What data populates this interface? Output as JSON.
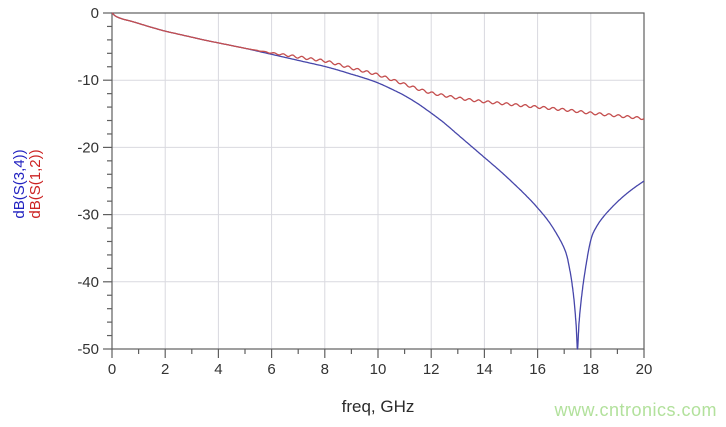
{
  "watermark": {
    "text": "www.cntronics.com",
    "color": "#b2e19c"
  },
  "chart_data": {
    "type": "line",
    "title": "",
    "xlabel": "freq, GHz",
    "ylabel_lines": [
      {
        "text": "dB(S(3,4))",
        "color": "#2323c0"
      },
      {
        "text": "dB(S(1,2))",
        "color": "#cc2222"
      }
    ],
    "xlim": [
      0,
      20
    ],
    "ylim": [
      -50,
      0
    ],
    "x_major_ticks": [
      0,
      2,
      4,
      6,
      8,
      10,
      12,
      14,
      16,
      18,
      20
    ],
    "x_tick_labels": [
      "0",
      "2",
      "4",
      "6",
      "8",
      "10",
      "12",
      "14",
      "16",
      "18",
      "20"
    ],
    "x_minor_step": 1,
    "y_major_ticks": [
      0,
      -10,
      -20,
      -30,
      -40,
      -50
    ],
    "y_tick_labels": [
      "0",
      "-10",
      "-20",
      "-30",
      "-40",
      "-50"
    ],
    "y_minor_step": 2,
    "grid": true,
    "grid_color": "#d9d9df",
    "axis_color": "#5f5f5f",
    "tick_label_color": "#333333",
    "legend_position": "rotated-left-axis",
    "series": [
      {
        "name": "dB(S(3,4))",
        "color": "#4646aa",
        "points": [
          [
            0,
            0
          ],
          [
            0.15,
            -0.5
          ],
          [
            0.4,
            -0.9
          ],
          [
            0.7,
            -1.2
          ],
          [
            1,
            -1.55
          ],
          [
            1.5,
            -2.15
          ],
          [
            2,
            -2.7
          ],
          [
            2.5,
            -3.15
          ],
          [
            3,
            -3.6
          ],
          [
            3.5,
            -4.05
          ],
          [
            4,
            -4.45
          ],
          [
            4.5,
            -4.85
          ],
          [
            5,
            -5.25
          ],
          [
            5.5,
            -5.7
          ],
          [
            6,
            -6.15
          ],
          [
            6.5,
            -6.6
          ],
          [
            7,
            -7.05
          ],
          [
            7.5,
            -7.5
          ],
          [
            8,
            -7.95
          ],
          [
            8.5,
            -8.5
          ],
          [
            9,
            -9.1
          ],
          [
            9.5,
            -9.7
          ],
          [
            10,
            -10.4
          ],
          [
            10.5,
            -11.3
          ],
          [
            11,
            -12.3
          ],
          [
            11.5,
            -13.5
          ],
          [
            12,
            -14.9
          ],
          [
            12.5,
            -16.4
          ],
          [
            13,
            -18.1
          ],
          [
            13.5,
            -19.8
          ],
          [
            14,
            -21.5
          ],
          [
            14.5,
            -23.2
          ],
          [
            15,
            -25.0
          ],
          [
            15.5,
            -26.9
          ],
          [
            16,
            -29.0
          ],
          [
            16.5,
            -31.5
          ],
          [
            17,
            -35.0
          ],
          [
            17.2,
            -38.0
          ],
          [
            17.35,
            -42.0
          ],
          [
            17.45,
            -46.5
          ],
          [
            17.5,
            -50
          ],
          [
            17.56,
            -46
          ],
          [
            17.66,
            -42
          ],
          [
            17.8,
            -38
          ],
          [
            18,
            -33.8
          ],
          [
            18.2,
            -31.9
          ],
          [
            18.5,
            -30.2
          ],
          [
            19,
            -28.1
          ],
          [
            19.5,
            -26.4
          ],
          [
            20,
            -25.0
          ]
        ]
      },
      {
        "name": "dB(S(1,2))",
        "color": "#c44e4e",
        "points": [
          [
            0,
            0
          ],
          [
            0.15,
            -0.5
          ],
          [
            0.4,
            -0.9
          ],
          [
            0.7,
            -1.2
          ],
          [
            1,
            -1.55
          ],
          [
            1.5,
            -2.15
          ],
          [
            2,
            -2.7
          ],
          [
            2.5,
            -3.15
          ],
          [
            3,
            -3.6
          ],
          [
            3.5,
            -4.05
          ],
          [
            4,
            -4.45
          ],
          [
            4.5,
            -4.85
          ],
          [
            5,
            -5.25
          ],
          [
            5.5,
            -5.6
          ],
          [
            6,
            -5.95
          ],
          [
            6.5,
            -6.25
          ],
          [
            7,
            -6.55
          ],
          [
            7.5,
            -6.85
          ],
          [
            8,
            -7.15
          ],
          [
            8.5,
            -7.65
          ],
          [
            9,
            -8.2
          ],
          [
            9.5,
            -8.7
          ],
          [
            10,
            -9.2
          ],
          [
            10.5,
            -9.9
          ],
          [
            11,
            -10.6
          ],
          [
            11.5,
            -11.3
          ],
          [
            12,
            -11.9
          ],
          [
            12.5,
            -12.3
          ],
          [
            13,
            -12.65
          ],
          [
            13.5,
            -12.95
          ],
          [
            14,
            -13.2
          ],
          [
            14.5,
            -13.4
          ],
          [
            15,
            -13.6
          ],
          [
            15.5,
            -13.8
          ],
          [
            16,
            -14.0
          ],
          [
            16.5,
            -14.2
          ],
          [
            17,
            -14.4
          ],
          [
            17.5,
            -14.65
          ],
          [
            18,
            -14.9
          ],
          [
            18.5,
            -15.1
          ],
          [
            19,
            -15.3
          ],
          [
            19.5,
            -15.5
          ],
          [
            20,
            -15.7
          ]
        ],
        "ripple": {
          "start": 5.3,
          "ramp": 1.5,
          "amplitude": 0.18,
          "period": 0.35
        }
      }
    ]
  }
}
